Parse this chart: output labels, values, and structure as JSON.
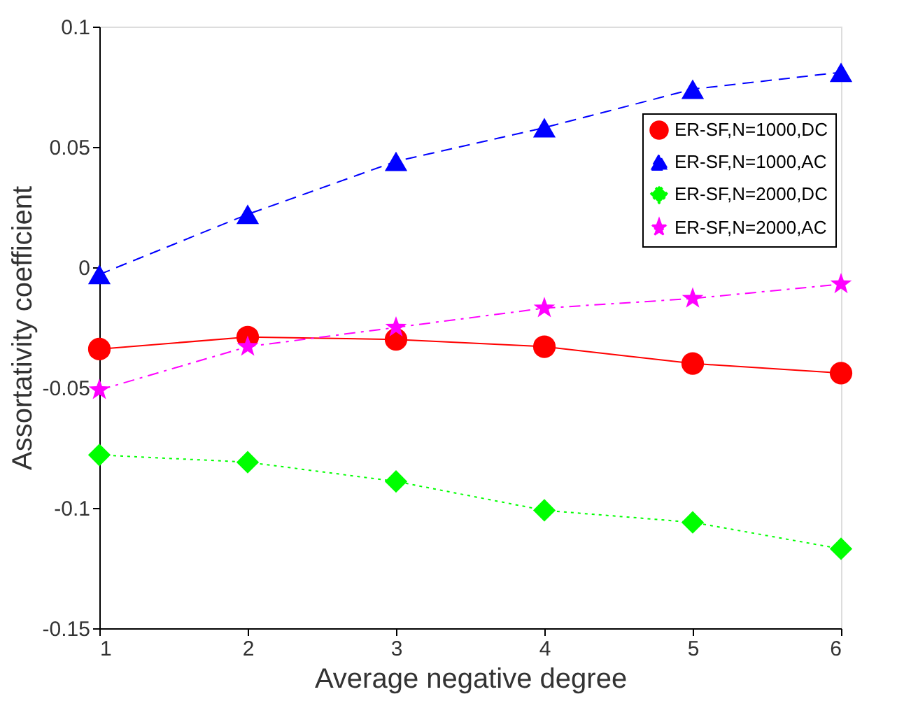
{
  "chart_data": {
    "type": "line",
    "xlabel": "Average negative degree",
    "ylabel": "Assortativity coefficient",
    "x": [
      1,
      2,
      3,
      4,
      5,
      6
    ],
    "xlim": [
      1,
      6
    ],
    "xticks": [
      1,
      2,
      3,
      4,
      5,
      6
    ],
    "ylim": [
      -0.15,
      0.1
    ],
    "yticks": [
      -0.15,
      -0.1,
      -0.05,
      0,
      0.05,
      0.1
    ],
    "grid": false,
    "legend": "top right",
    "series": [
      {
        "name": "ER-SF,N=1000,DC",
        "color": "#ff0000",
        "marker": "circle",
        "line_style": "solid",
        "values": [
          -0.034,
          -0.029,
          -0.03,
          -0.033,
          -0.04,
          -0.044
        ]
      },
      {
        "name": "ER-SF,N=1000,AC",
        "color": "#0000ff",
        "marker": "triangle",
        "line_style": "dashed",
        "values": [
          -0.003,
          0.022,
          0.044,
          0.058,
          0.074,
          0.081
        ]
      },
      {
        "name": "ER-SF,N=2000,DC",
        "color": "#00ff00",
        "marker": "diamond",
        "line_style": "dotted",
        "values": [
          -0.078,
          -0.081,
          -0.089,
          -0.101,
          -0.106,
          -0.117
        ]
      },
      {
        "name": "ER-SF,N=2000,AC",
        "color": "#ff00ff",
        "marker": "star",
        "line_style": "dashdot",
        "values": [
          -0.051,
          -0.033,
          -0.025,
          -0.017,
          -0.013,
          -0.007
        ]
      }
    ]
  }
}
